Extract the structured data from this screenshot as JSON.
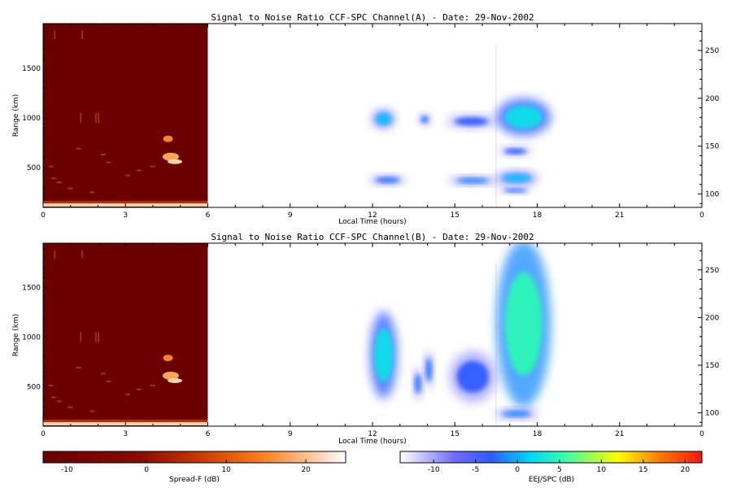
{
  "chart_data": [
    {
      "type": "heatmap",
      "title": "Signal to Noise Ratio CCF-SPC Channel(A) - Date: 29-Nov-2002",
      "xlabel": "Local Time (hours)",
      "ylabel": "Range (km)",
      "xlim": [
        0,
        24
      ],
      "xticks": [
        "0",
        "3",
        "6",
        "9",
        "12",
        "15",
        "18",
        "21",
        "0"
      ],
      "ylim": [
        100,
        1950
      ],
      "yticks": [
        500,
        1000,
        1500
      ],
      "y2lim": [
        86,
        278
      ],
      "y2ticks": [
        100,
        150,
        200,
        250
      ],
      "spread_f_block": {
        "x": [
          0,
          6
        ]
      },
      "echo_regions": [
        {
          "x": [
            12.0,
            12.8
          ],
          "y": [
            900,
            1080
          ],
          "snr": 0
        },
        {
          "x": [
            13.7,
            14.1
          ],
          "y": [
            930,
            1040
          ],
          "snr": -3
        },
        {
          "x": [
            14.7,
            16.5
          ],
          "y": [
            900,
            1030
          ],
          "snr": -4
        },
        {
          "x": [
            16.5,
            18.5
          ],
          "y": [
            820,
            1200
          ],
          "snr": 2
        },
        {
          "x": [
            16.6,
            17.8
          ],
          "y": [
            620,
            710
          ],
          "snr": -4
        },
        {
          "x": [
            11.9,
            13.2
          ],
          "y": [
            330,
            420
          ],
          "snr": -3
        },
        {
          "x": [
            14.8,
            16.5
          ],
          "y": [
            330,
            410
          ],
          "snr": -2
        },
        {
          "x": [
            16.5,
            18.0
          ],
          "y": [
            330,
            460
          ],
          "snr": 0
        },
        {
          "x": [
            16.6,
            17.8
          ],
          "y": [
            240,
            300
          ],
          "snr": -3
        }
      ]
    },
    {
      "type": "heatmap",
      "title": "Signal to Noise Ratio CCF-SPC Channel(B) - Date: 29-Nov-2002",
      "xlabel": "Local Time (hours)",
      "ylabel": "Range (km)",
      "xlim": [
        0,
        24
      ],
      "xticks": [
        "0",
        "3",
        "6",
        "9",
        "12",
        "15",
        "18",
        "21",
        "0"
      ],
      "ylim": [
        100,
        1950
      ],
      "yticks": [
        500,
        1000,
        1500
      ],
      "y2lim": [
        86,
        278
      ],
      "y2ticks": [
        100,
        150,
        200,
        250
      ],
      "spread_f_block": {
        "x": [
          0,
          6
        ]
      },
      "echo_regions": [
        {
          "x": [
            11.9,
            12.9
          ],
          "y": [
            380,
            1260
          ],
          "snr": 2
        },
        {
          "x": [
            13.5,
            13.8
          ],
          "y": [
            370,
            690
          ],
          "snr": -3
        },
        {
          "x": [
            13.9,
            14.2
          ],
          "y": [
            480,
            860
          ],
          "snr": -3
        },
        {
          "x": [
            14.8,
            16.5
          ],
          "y": [
            340,
            860
          ],
          "snr": -4
        },
        {
          "x": [
            16.5,
            18.5
          ],
          "y": [
            290,
            1980
          ],
          "snr": 4
        },
        {
          "x": [
            16.5,
            18.0
          ],
          "y": [
            180,
            270
          ],
          "snr": -2
        }
      ]
    }
  ],
  "colorbars": {
    "spread_f": {
      "label": "Spread-F (dB)",
      "range": [
        -13,
        25
      ],
      "ticks": [
        "-10",
        "0",
        "10",
        "20"
      ]
    },
    "eej_spc": {
      "label": "EEJ/SPC (dB)",
      "range": [
        -14,
        22
      ],
      "ticks": [
        "-10",
        "-5",
        "0",
        "5",
        "10",
        "15",
        "20"
      ]
    }
  }
}
